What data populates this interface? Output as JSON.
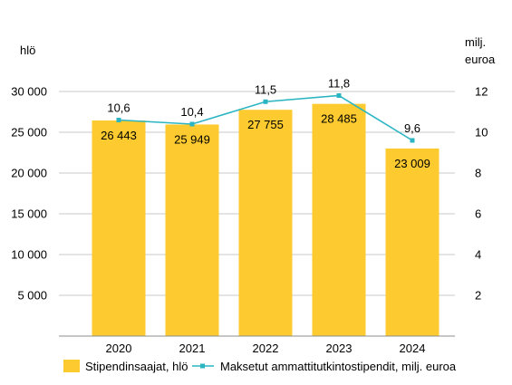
{
  "chart_data": {
    "type": "bar",
    "categories": [
      "2020",
      "2021",
      "2022",
      "2023",
      "2024"
    ],
    "series": [
      {
        "name": "Stipendinsaajat, hlö",
        "type": "bar",
        "axis": "left",
        "color": "#FDCA2F",
        "values": [
          26443,
          25949,
          27755,
          28485,
          23009
        ],
        "labels": [
          "26 443",
          "25 949",
          "27 755",
          "28 485",
          "23 009"
        ]
      },
      {
        "name": "Maksetut ammattitutkintostipendit, milj. euroa",
        "type": "line",
        "axis": "right",
        "color": "#2BB5C3",
        "values": [
          10.6,
          10.4,
          11.5,
          11.8,
          9.6
        ],
        "labels": [
          "10,6",
          "10,4",
          "11,5",
          "11,8",
          "9,6"
        ]
      }
    ],
    "y_left": {
      "label": "hlö",
      "ylim": [
        0,
        30000
      ],
      "ticks": [
        5000,
        10000,
        15000,
        20000,
        25000,
        30000
      ],
      "tick_labels": [
        "5 000",
        "10 000",
        "15 000",
        "20 000",
        "25 000",
        "30 000"
      ]
    },
    "y_right": {
      "label_line1": "milj.",
      "label_line2": "euroa",
      "ylim": [
        0,
        12
      ],
      "ticks": [
        2,
        4,
        6,
        8,
        10,
        12
      ],
      "tick_labels": [
        "2",
        "4",
        "6",
        "8",
        "10",
        "12"
      ]
    },
    "grid": true,
    "legend_position": "bottom"
  }
}
